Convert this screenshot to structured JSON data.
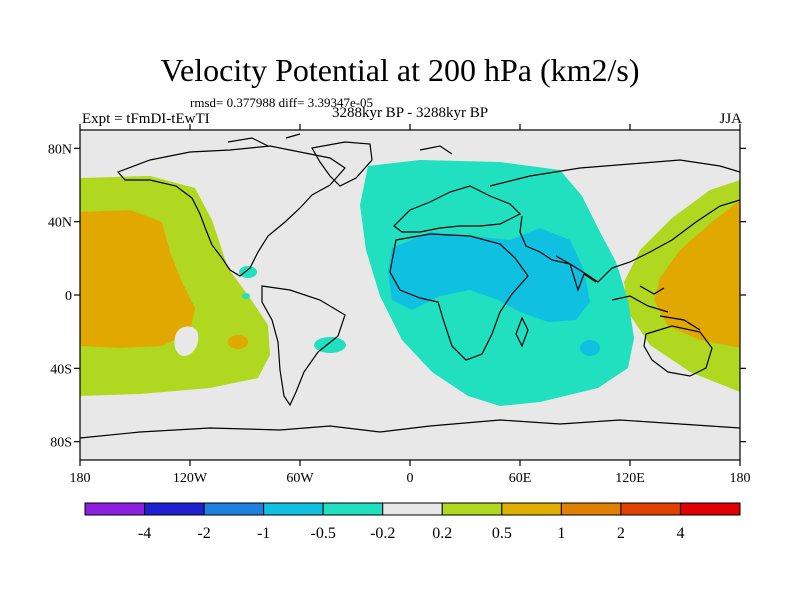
{
  "title": "Velocity Potential at 200 hPa (km2/s)",
  "stats": {
    "rmsd_label": "rmsd=",
    "rmsd_value": "0.377988",
    "diff_label": "diff=",
    "diff_value": "3.39347e-05",
    "line": "rmsd= 0.377988 diff= 3.39347e-05"
  },
  "experiment": "Expt = tFmDI-tEwTI",
  "period": "3288kyr BP - 3288kyr BP",
  "season": "JJA",
  "axes": {
    "y_ticks": [
      {
        "label": "80N",
        "lat": 80
      },
      {
        "label": "40N",
        "lat": 40
      },
      {
        "label": "0",
        "lat": 0
      },
      {
        "label": "40S",
        "lat": -40
      },
      {
        "label": "80S",
        "lat": -80
      }
    ],
    "x_ticks": [
      {
        "label": "180",
        "lon": -180
      },
      {
        "label": "120W",
        "lon": -120
      },
      {
        "label": "60W",
        "lon": -60
      },
      {
        "label": "0",
        "lon": 0
      },
      {
        "label": "60E",
        "lon": 60
      },
      {
        "label": "120E",
        "lon": 120
      },
      {
        "label": "180",
        "lon": 180
      }
    ],
    "lon_range": [
      -180,
      180
    ],
    "lat_range": [
      -90,
      90
    ]
  },
  "colorbar": {
    "colors": [
      "#8c20e0",
      "#2020d0",
      "#1e80e0",
      "#10c0e0",
      "#20e0c0",
      "#e8e8e8",
      "#b0d820",
      "#e0b000",
      "#e08000",
      "#e04000",
      "#e00000"
    ],
    "labels": [
      "-4",
      "-2",
      "-1",
      "-0.5",
      "-0.2",
      "0.2",
      "0.5",
      "1",
      "2",
      "4"
    ]
  },
  "regions": {
    "background_color": "#e8e8e8",
    "lime_color": "#b0d820",
    "orange_color": "#e0a800",
    "teal_color": "#20e0c0",
    "cyan_color": "#10c0e0"
  }
}
